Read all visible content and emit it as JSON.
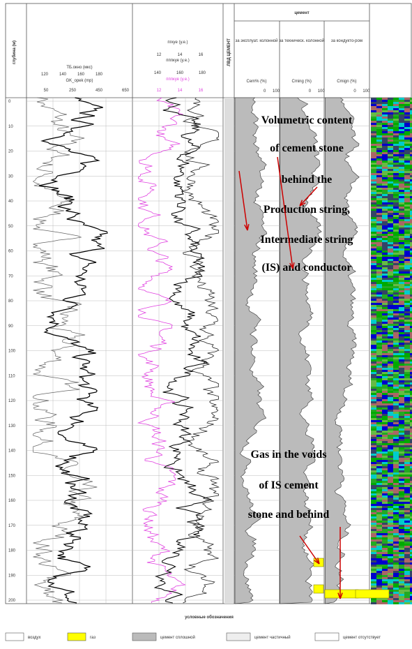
{
  "depth_axis": {
    "label": "глубина (м)",
    "ticks": [
      "0",
      "10",
      "20",
      "30",
      "40",
      "50",
      "60",
      "70",
      "80",
      "90",
      "100",
      "110",
      "120",
      "130",
      "140",
      "150",
      "160",
      "170",
      "180",
      "190",
      "200"
    ]
  },
  "track1": {
    "curve1_name": "ТБ.окно (мкс)",
    "curve1_ticks": [
      "120",
      "140",
      "160",
      "180"
    ],
    "curve2_name": "GK_opek (mp)",
    "curve2_ticks": [
      "50",
      "250",
      "450",
      "650"
    ]
  },
  "track2": {
    "curve1_name": "пгкуе (у.е.)",
    "curve1_ticks": [
      "12",
      "14",
      "16"
    ],
    "curve2_name": "пппкуе (у.е.)",
    "curve2_ticks": [
      "140",
      "160",
      "180"
    ],
    "curve3_name": "пппкуе (у.е.)",
    "curve3_ticks": [
      "12",
      "14",
      "16"
    ]
  },
  "narrow_track": {
    "label": "ЛВД ЦЕМЕНТ"
  },
  "cement": {
    "title": "цемент",
    "columns": [
      {
        "title": "за эксплуат. колонной",
        "curve": "Cem% (%)",
        "ticks": [
          "0",
          "100"
        ]
      },
      {
        "title": "за техническ. колонной",
        "curve": "Cming (%)",
        "ticks": [
          "0",
          "100"
        ]
      },
      {
        "title": "за кондукто-ром",
        "curve": "Cmign (%)",
        "ticks": [
          "0",
          "100"
        ]
      }
    ]
  },
  "annotations": [
    {
      "lines": [
        "Volumetric content",
        "of cement stone",
        "behind the",
        "Production string,",
        "Intermediate string",
        "(IS) and conductor"
      ]
    },
    {
      "lines": [
        "Gas in the voids",
        "of IS cement",
        "stone  and behind"
      ]
    }
  ],
  "legend": {
    "title": "условные обозначения",
    "items": [
      "воздух",
      "газ",
      "цемент сплошной",
      "цемент частичный",
      "цемент отсутствует"
    ]
  }
}
